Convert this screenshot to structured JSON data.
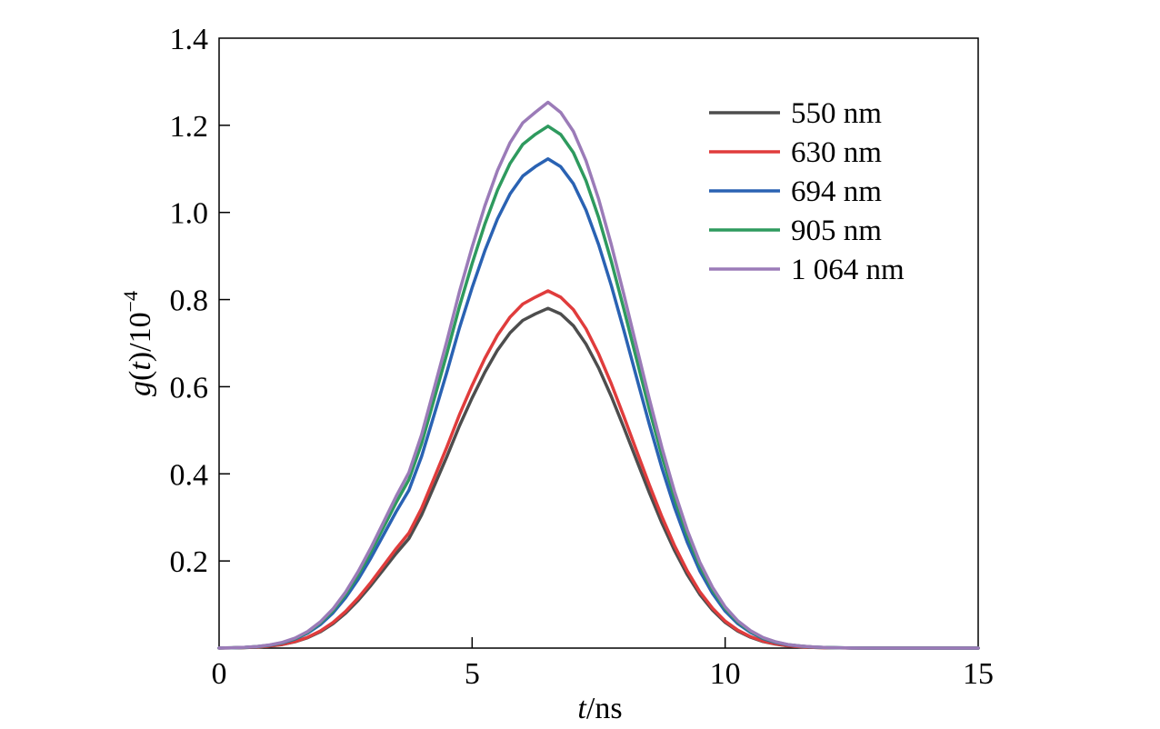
{
  "chart_data": {
    "type": "line",
    "x": [
      0,
      0.25,
      0.5,
      0.75,
      1,
      1.25,
      1.5,
      1.75,
      2,
      2.25,
      2.5,
      2.75,
      3,
      3.25,
      3.5,
      3.75,
      4,
      4.25,
      4.5,
      4.75,
      5,
      5.25,
      5.5,
      5.75,
      6,
      6.25,
      6.5,
      6.75,
      7,
      7.25,
      7.5,
      7.75,
      8,
      8.25,
      8.5,
      8.75,
      9,
      9.25,
      9.5,
      9.75,
      10,
      10.25,
      10.5,
      10.75,
      11,
      11.25,
      11.5,
      11.75,
      12,
      12.5,
      13,
      13.5,
      14,
      14.5,
      15
    ],
    "series": [
      {
        "name": "550 nm",
        "color": "#4d4d4d",
        "values": [
          0.0002,
          0.0005,
          0.0011,
          0.0023,
          0.0045,
          0.0082,
          0.0143,
          0.0237,
          0.0374,
          0.0561,
          0.0803,
          0.1098,
          0.1437,
          0.1804,
          0.2174,
          0.2515,
          0.3053,
          0.372,
          0.4394,
          0.5102,
          0.5741,
          0.6331,
          0.6838,
          0.7237,
          0.7521,
          0.7672,
          0.78,
          0.767,
          0.74,
          0.698,
          0.643,
          0.578,
          0.506,
          0.431,
          0.357,
          0.287,
          0.224,
          0.169,
          0.123,
          0.087,
          0.059,
          0.039,
          0.025,
          0.015,
          0.009,
          0.005,
          0.003,
          0.0015,
          0.0008,
          0.0002,
          0.0001,
          0,
          0,
          0,
          0
        ]
      },
      {
        "name": "630 nm",
        "color": "#e03c3c",
        "values": [
          0.0002,
          0.0005,
          0.0012,
          0.0024,
          0.0047,
          0.0086,
          0.015,
          0.0249,
          0.0393,
          0.0589,
          0.0843,
          0.1153,
          0.1509,
          0.1894,
          0.2283,
          0.2641,
          0.3206,
          0.3906,
          0.4614,
          0.5357,
          0.6028,
          0.6648,
          0.718,
          0.7599,
          0.7897,
          0.8056,
          0.82,
          0.8054,
          0.777,
          0.7329,
          0.6752,
          0.6069,
          0.5313,
          0.4526,
          0.3749,
          0.3014,
          0.2352,
          0.1775,
          0.1292,
          0.0914,
          0.062,
          0.041,
          0.0263,
          0.0158,
          0.0095,
          0.0053,
          0.0032,
          0.0016,
          0.0008,
          0.0002,
          0.0001,
          0,
          0,
          0,
          0
        ]
      },
      {
        "name": "694 nm",
        "color": "#2a62b3",
        "values": [
          0.0003,
          0.0007,
          0.0016,
          0.0033,
          0.0065,
          0.0118,
          0.0206,
          0.0342,
          0.0539,
          0.0808,
          0.1157,
          0.1582,
          0.207,
          0.2599,
          0.3132,
          0.3623,
          0.4398,
          0.5359,
          0.633,
          0.735,
          0.827,
          0.912,
          0.985,
          1.0425,
          1.0834,
          1.1052,
          1.123,
          1.1049,
          1.066,
          1.0054,
          0.9262,
          0.8325,
          0.7289,
          0.6209,
          0.5143,
          0.4135,
          0.3227,
          0.2435,
          0.1772,
          0.1253,
          0.085,
          0.0562,
          0.036,
          0.0216,
          0.013,
          0.0072,
          0.0043,
          0.0022,
          0.0012,
          0.0003,
          0.0001,
          0,
          0,
          0,
          0
        ]
      },
      {
        "name": "905 nm",
        "color": "#2e9a5e",
        "values": [
          0.0003,
          0.0008,
          0.0017,
          0.0035,
          0.0069,
          0.0126,
          0.022,
          0.0364,
          0.0575,
          0.0862,
          0.1234,
          0.1688,
          0.2209,
          0.2773,
          0.3342,
          0.3866,
          0.4693,
          0.5718,
          0.6754,
          0.7843,
          0.8824,
          0.9731,
          1.051,
          1.1124,
          1.156,
          1.1793,
          1.198,
          1.1789,
          1.1374,
          1.0728,
          0.9883,
          0.8883,
          0.7778,
          0.6625,
          0.5488,
          0.4412,
          0.3443,
          0.2598,
          0.1891,
          0.1337,
          0.0907,
          0.06,
          0.0384,
          0.0231,
          0.0139,
          0.0077,
          0.0046,
          0.0023,
          0.0012,
          0.0003,
          0.0001,
          0,
          0,
          0,
          0
        ]
      },
      {
        "name": "1 064 nm",
        "color": "#9b7bb8",
        "values": [
          0.0003,
          0.0008,
          0.0018,
          0.0037,
          0.0072,
          0.0132,
          0.0229,
          0.038,
          0.06,
          0.0899,
          0.1287,
          0.176,
          0.2304,
          0.2892,
          0.3485,
          0.4032,
          0.4895,
          0.5963,
          0.7044,
          0.818,
          0.9203,
          1.0149,
          1.0961,
          1.1602,
          1.2056,
          1.2299,
          1.253,
          1.2295,
          1.1862,
          1.1188,
          1.0307,
          0.9264,
          0.8112,
          0.691,
          0.5723,
          0.4601,
          0.3591,
          0.271,
          0.1972,
          0.1394,
          0.0946,
          0.0625,
          0.04,
          0.0241,
          0.0145,
          0.008,
          0.0048,
          0.0024,
          0.0012,
          0.0003,
          0.0001,
          0,
          0,
          0,
          0
        ]
      }
    ],
    "xlabel_italic": "t",
    "xlabel_rest": "/ns",
    "ylabel_italic1": "g",
    "ylabel_paren_open": "(",
    "ylabel_italic2": "t",
    "ylabel_paren_close": ")/10",
    "ylabel_exp": "−4",
    "xlim": [
      0,
      15
    ],
    "ylim": [
      0,
      1.4
    ],
    "xticks": [
      0,
      5,
      10,
      15
    ],
    "xtick_labels": [
      "0",
      "5",
      "10",
      "15"
    ],
    "yticks": [
      0.2,
      0.4,
      0.6,
      0.8,
      1.0,
      1.2,
      1.4
    ],
    "ytick_labels": [
      "0.2",
      "0.4",
      "0.6",
      "0.8",
      "1.0",
      "1.2",
      "1.4"
    ],
    "grid": false,
    "legend_position": "top-right"
  }
}
